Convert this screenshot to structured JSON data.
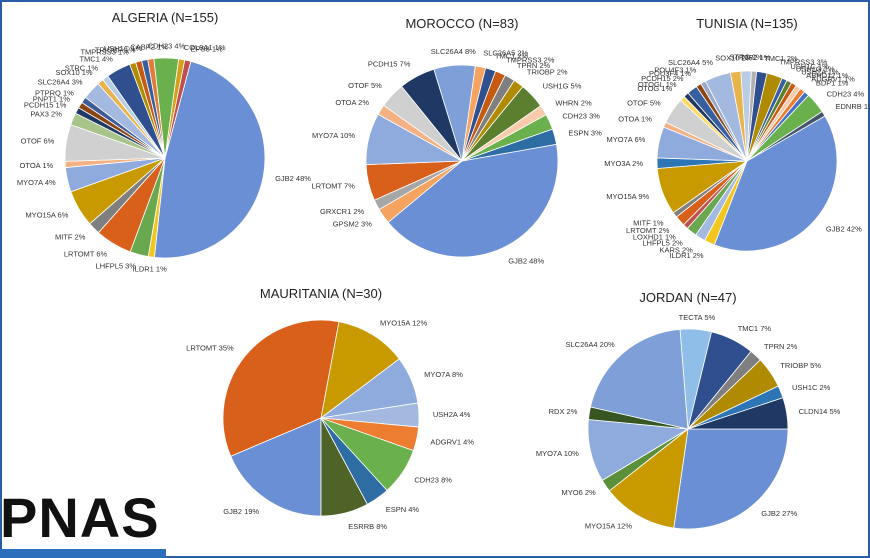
{
  "branding": {
    "logo_text": "PNAS",
    "bar_color": "#2a6ebc",
    "frame_color": "#2a5da8"
  },
  "chart_data": [
    {
      "type": "pie",
      "title": "ALGERIA (N=155)",
      "slices": [
        {
          "label": "GJB2 48%",
          "value": 48,
          "color": "#6b8fd4"
        },
        {
          "label": "ILDR1 1%",
          "value": 1,
          "color": "#f2c61f"
        },
        {
          "label": "LHFPL5 3%",
          "value": 3,
          "color": "#6aa84f"
        },
        {
          "label": "LRTOMT 6%",
          "value": 6,
          "color": "#d9601b"
        },
        {
          "label": "MITF 2%",
          "value": 2,
          "color": "#7f7f7f"
        },
        {
          "label": "MYO15A 6%",
          "value": 6,
          "color": "#c89a00"
        },
        {
          "label": "MYO7A 4%",
          "value": 4,
          "color": "#8faadc"
        },
        {
          "label": "OTOA 1%",
          "value": 1,
          "color": "#f4b183"
        },
        {
          "label": "OTOF 6%",
          "value": 6,
          "color": "#d0d0d0"
        },
        {
          "label": "PAX3 2%",
          "value": 2,
          "color": "#a9c48a"
        },
        {
          "label": "PCDH15 1%",
          "value": 1,
          "color": "#1f3864"
        },
        {
          "label": "PNPT1 1%",
          "value": 1,
          "color": "#8b4513"
        },
        {
          "label": "PTPRQ 1%",
          "value": 1,
          "color": "#3d5a99"
        },
        {
          "label": "SLC26A4 3%",
          "value": 3,
          "color": "#a3b9e0"
        },
        {
          "label": "SOX10 1%",
          "value": 1,
          "color": "#e8b44c"
        },
        {
          "label": "STRC 1%",
          "value": 1,
          "color": "#b8cce4"
        },
        {
          "label": "TMC1 4%",
          "value": 4,
          "color": "#2f4f8f"
        },
        {
          "label": "TMPRSS3 1%",
          "value": 1,
          "color": "#b08a00"
        },
        {
          "label": "TRIOBP 1%",
          "value": 1,
          "color": "#c55a11"
        },
        {
          "label": "USH1C 1%",
          "value": 1,
          "color": "#375f9f"
        },
        {
          "label": "CABP2 1%",
          "value": 1,
          "color": "#e07b39"
        },
        {
          "label": "CDH23 4%",
          "value": 4,
          "color": "#6ab04c"
        },
        {
          "label": "COL9A1 1%",
          "value": 1,
          "color": "#d4a017"
        },
        {
          "label": "EPS8 1%",
          "value": 1,
          "color": "#c0504d"
        }
      ]
    },
    {
      "type": "pie",
      "title": "MOROCCO (N=83)",
      "slices": [
        {
          "label": "GJB2 48%",
          "value": 48,
          "color": "#6b8fd4"
        },
        {
          "label": "GPSM2 3%",
          "value": 3,
          "color": "#f4a460"
        },
        {
          "label": "GRXCR1 2%",
          "value": 2,
          "color": "#a6a6a6"
        },
        {
          "label": "LRTOMT 7%",
          "value": 7,
          "color": "#d9601b"
        },
        {
          "label": "MYO7A 10%",
          "value": 10,
          "color": "#8faadc"
        },
        {
          "label": "OTOA 2%",
          "value": 2,
          "color": "#f4b183"
        },
        {
          "label": "OTOF 5%",
          "value": 5,
          "color": "#d0d0d0"
        },
        {
          "label": "PCDH15 7%",
          "value": 7,
          "color": "#1f3864"
        },
        {
          "label": "SLC26A4 8%",
          "value": 8,
          "color": "#7f9fd8"
        },
        {
          "label": "SLC26A5 2%",
          "value": 2,
          "color": "#f4a460"
        },
        {
          "label": "TMC1 2%",
          "value": 2,
          "color": "#2f4f8f"
        },
        {
          "label": "TMPRSS3 2%",
          "value": 2,
          "color": "#c55a11"
        },
        {
          "label": "TPRN 2%",
          "value": 2,
          "color": "#7f7f7f"
        },
        {
          "label": "TRIOBP 2%",
          "value": 2,
          "color": "#b08a00"
        },
        {
          "label": "USH1G 5%",
          "value": 5,
          "color": "#5b7f2f"
        },
        {
          "label": "WHRN 2%",
          "value": 2,
          "color": "#f8cbad"
        },
        {
          "label": "CDH23 3%",
          "value": 3,
          "color": "#6ab04c"
        },
        {
          "label": "ESPN 3%",
          "value": 3,
          "color": "#2e6da4"
        }
      ]
    },
    {
      "type": "pie",
      "title": "TUNISIA (N=135)",
      "slices": [
        {
          "label": "GJB2 42%",
          "value": 42,
          "color": "#6b8fd4"
        },
        {
          "label": "ILDR1 2%",
          "value": 2,
          "color": "#f2c61f"
        },
        {
          "label": "KARS 2%",
          "value": 2,
          "color": "#a3b9e0"
        },
        {
          "label": "LHFPL5 2%",
          "value": 2,
          "color": "#6aa84f"
        },
        {
          "label": "LOXHD1 1%",
          "value": 1,
          "color": "#c0504d"
        },
        {
          "label": "LRTOMT 2%",
          "value": 2,
          "color": "#d9601b"
        },
        {
          "label": "MITF 1%",
          "value": 1,
          "color": "#7f7f7f"
        },
        {
          "label": "MYO15A 9%",
          "value": 9,
          "color": "#c89a00"
        },
        {
          "label": "MYO3A 2%",
          "value": 2,
          "color": "#2e75b6"
        },
        {
          "label": "MYO7A 6%",
          "value": 6,
          "color": "#8faadc"
        },
        {
          "label": "OTOA 1%",
          "value": 1,
          "color": "#f4b183"
        },
        {
          "label": "OTOF 5%",
          "value": 5,
          "color": "#d0d0d0"
        },
        {
          "label": "OTOG 1%",
          "value": 1,
          "color": "#ffd966"
        },
        {
          "label": "OTOGL 1%",
          "value": 1,
          "color": "#1f3864"
        },
        {
          "label": "PCDH15 2%",
          "value": 2,
          "color": "#375f9f"
        },
        {
          "label": "POU3F4 1%",
          "value": 1,
          "color": "#8b4513"
        },
        {
          "label": "POU4F3 1%",
          "value": 1,
          "color": "#9aa9c7"
        },
        {
          "label": "SLC26A4 5%",
          "value": 5,
          "color": "#a3b9e0"
        },
        {
          "label": "SOX10 2%",
          "value": 2,
          "color": "#e8b44c"
        },
        {
          "label": "STRC 2%",
          "value": 2,
          "color": "#b8cce4"
        },
        {
          "label": "TJP2 1%",
          "value": 1,
          "color": "#b0b0b0"
        },
        {
          "label": "TMC1 2%",
          "value": 2,
          "color": "#2f4f8f"
        },
        {
          "label": "TMPRSS3 3%",
          "value": 3,
          "color": "#b08a00"
        },
        {
          "label": "USH1C 1%",
          "value": 1,
          "color": "#375f9f"
        },
        {
          "label": "USH1G 1%",
          "value": 1,
          "color": "#5b7f2f"
        },
        {
          "label": "USH2A 1%",
          "value": 1,
          "color": "#c55a11"
        },
        {
          "label": "ABHD12 1%",
          "value": 1,
          "color": "#f8cbad"
        },
        {
          "label": "ADGRV1 1%",
          "value": 1,
          "color": "#ed7d31"
        },
        {
          "label": "BDP1 1%",
          "value": 1,
          "color": "#4472c4"
        },
        {
          "label": "CDH23 4%",
          "value": 4,
          "color": "#6ab04c"
        },
        {
          "label": "EDNRB 1%",
          "value": 1,
          "color": "#44546a"
        }
      ]
    },
    {
      "type": "pie",
      "title": "MAURITANIA (N=30)",
      "slices": [
        {
          "label": "GJB2 19%",
          "value": 19,
          "color": "#6b8fd4"
        },
        {
          "label": "LRTOMT 35%",
          "value": 35,
          "color": "#d9601b"
        },
        {
          "label": "MYO15A 12%",
          "value": 12,
          "color": "#c89a00"
        },
        {
          "label": "MYO7A 8%",
          "value": 8,
          "color": "#8faadc"
        },
        {
          "label": "USH2A 4%",
          "value": 4,
          "color": "#a3b9e0"
        },
        {
          "label": "ADGRV1 4%",
          "value": 4,
          "color": "#ed7d31"
        },
        {
          "label": "CDH23 8%",
          "value": 8,
          "color": "#6ab04c"
        },
        {
          "label": "ESPN 4%",
          "value": 4,
          "color": "#2e6da4"
        },
        {
          "label": "ESRRB 8%",
          "value": 8,
          "color": "#4f6228"
        }
      ]
    },
    {
      "type": "pie",
      "title": "JORDAN (N=47)",
      "slices": [
        {
          "label": "GJB2 27%",
          "value": 27,
          "color": "#6b8fd4"
        },
        {
          "label": "MYO15A 12%",
          "value": 12,
          "color": "#c89a00"
        },
        {
          "label": "MYO6 2%",
          "value": 2,
          "color": "#5b8f3a"
        },
        {
          "label": "MYO7A 10%",
          "value": 10,
          "color": "#8faadc"
        },
        {
          "label": "RDX 2%",
          "value": 2,
          "color": "#375623"
        },
        {
          "label": "SLC26A4 20%",
          "value": 20,
          "color": "#7f9fd8"
        },
        {
          "label": "TECTA 5%",
          "value": 5,
          "color": "#8fbfe8"
        },
        {
          "label": "TMC1 7%",
          "value": 7,
          "color": "#2f4f8f"
        },
        {
          "label": "TPRN 2%",
          "value": 2,
          "color": "#7f7f7f"
        },
        {
          "label": "TRIOBP 5%",
          "value": 5,
          "color": "#b08a00"
        },
        {
          "label": "USH1C 2%",
          "value": 2,
          "color": "#2e75b6"
        },
        {
          "label": "CLDN14 5%",
          "value": 5,
          "color": "#1f3864"
        }
      ]
    }
  ]
}
